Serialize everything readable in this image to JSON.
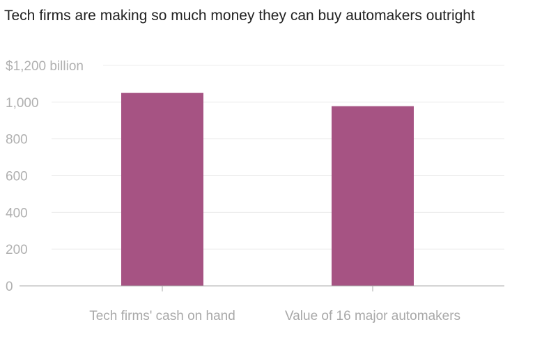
{
  "colors": {
    "bar": "#a65383",
    "grid": "#ececec",
    "axis": "#aaaaaa",
    "tick_text": "#b0b0b0",
    "title_text": "#222222"
  },
  "chart_data": {
    "type": "bar",
    "title": "Tech firms are making so much money they can buy automakers outright",
    "xlabel": "",
    "ylabel": "",
    "categories": [
      "Tech firms' cash on hand",
      "Value of 16 major automakers"
    ],
    "values": [
      1050,
      978
    ],
    "ylim": [
      0,
      1200
    ],
    "yticks": [
      0,
      200,
      400,
      600,
      800,
      1000,
      1200
    ],
    "ytick_labels": [
      "0",
      "200",
      "400",
      "600",
      "800",
      "1,000",
      "$1,200 billion"
    ],
    "grid": true,
    "legend": "none"
  }
}
